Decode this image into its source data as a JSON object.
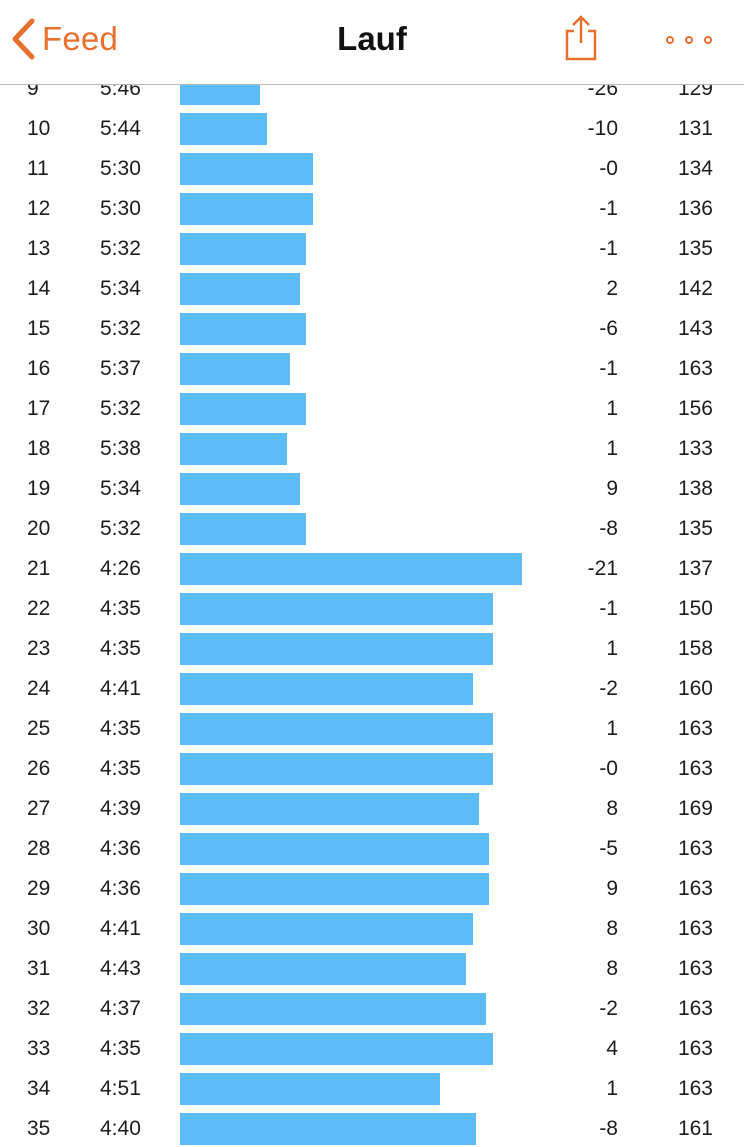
{
  "nav": {
    "back_label": "Feed",
    "title": "Lauf",
    "accent_color": "#e8702f",
    "icons": [
      "chevron-left-icon",
      "share-icon",
      "more-dots-icon"
    ]
  },
  "bar_color": "#5bbcf7",
  "bar_scale": {
    "description": "bar length represents pace (faster = longer)"
  },
  "splits": [
    {
      "km": "9",
      "pace": "5:46",
      "elevation": "-26",
      "heart_rate": "129"
    },
    {
      "km": "10",
      "pace": "5:44",
      "elevation": "-10",
      "heart_rate": "131"
    },
    {
      "km": "11",
      "pace": "5:30",
      "elevation": "-0",
      "heart_rate": "134"
    },
    {
      "km": "12",
      "pace": "5:30",
      "elevation": "-1",
      "heart_rate": "136"
    },
    {
      "km": "13",
      "pace": "5:32",
      "elevation": "-1",
      "heart_rate": "135"
    },
    {
      "km": "14",
      "pace": "5:34",
      "elevation": "2",
      "heart_rate": "142"
    },
    {
      "km": "15",
      "pace": "5:32",
      "elevation": "-6",
      "heart_rate": "143"
    },
    {
      "km": "16",
      "pace": "5:37",
      "elevation": "-1",
      "heart_rate": "163"
    },
    {
      "km": "17",
      "pace": "5:32",
      "elevation": "1",
      "heart_rate": "156"
    },
    {
      "km": "18",
      "pace": "5:38",
      "elevation": "1",
      "heart_rate": "133"
    },
    {
      "km": "19",
      "pace": "5:34",
      "elevation": "9",
      "heart_rate": "138"
    },
    {
      "km": "20",
      "pace": "5:32",
      "elevation": "-8",
      "heart_rate": "135"
    },
    {
      "km": "21",
      "pace": "4:26",
      "elevation": "-21",
      "heart_rate": "137"
    },
    {
      "km": "22",
      "pace": "4:35",
      "elevation": "-1",
      "heart_rate": "150"
    },
    {
      "km": "23",
      "pace": "4:35",
      "elevation": "1",
      "heart_rate": "158"
    },
    {
      "km": "24",
      "pace": "4:41",
      "elevation": "-2",
      "heart_rate": "160"
    },
    {
      "km": "25",
      "pace": "4:35",
      "elevation": "1",
      "heart_rate": "163"
    },
    {
      "km": "26",
      "pace": "4:35",
      "elevation": "-0",
      "heart_rate": "163"
    },
    {
      "km": "27",
      "pace": "4:39",
      "elevation": "8",
      "heart_rate": "169"
    },
    {
      "km": "28",
      "pace": "4:36",
      "elevation": "-5",
      "heart_rate": "163"
    },
    {
      "km": "29",
      "pace": "4:36",
      "elevation": "9",
      "heart_rate": "163"
    },
    {
      "km": "30",
      "pace": "4:41",
      "elevation": "8",
      "heart_rate": "163"
    },
    {
      "km": "31",
      "pace": "4:43",
      "elevation": "8",
      "heart_rate": "163"
    },
    {
      "km": "32",
      "pace": "4:37",
      "elevation": "-2",
      "heart_rate": "163"
    },
    {
      "km": "33",
      "pace": "4:35",
      "elevation": "4",
      "heart_rate": "163"
    },
    {
      "km": "34",
      "pace": "4:51",
      "elevation": "1",
      "heart_rate": "163"
    },
    {
      "km": "35",
      "pace": "4:40",
      "elevation": "-8",
      "heart_rate": "161"
    }
  ]
}
